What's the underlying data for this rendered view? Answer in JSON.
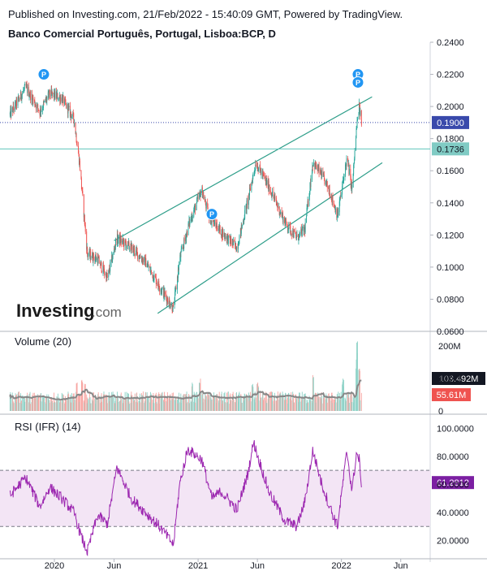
{
  "header": {
    "published": "Published on Investing.com, 21/Feb/2022 - 15:40:09 GMT, Powered by TradingView.",
    "instrument": "Banco Comercial Português, Portugal, Lisboa:BCP, D"
  },
  "logo": {
    "main": "Investing",
    "suffix": ".com"
  },
  "colors": {
    "up": "#26a69a",
    "down": "#ef5350",
    "channel": "#2e9e8a",
    "price_line": "#3949ab",
    "support_line": "#5fc4bd",
    "rsi": "#9c27b0",
    "rsi_band": "#f3e5f5",
    "volume_ma": "#888888",
    "marker": "#2196f3"
  },
  "chart_data": [
    {
      "type": "candlestick",
      "title": "Banco Comercial Português, Portugal, Lisboa:BCP, D",
      "ylim": [
        0.06,
        0.24
      ],
      "y_ticks": [
        "0.2400",
        "0.2200",
        "0.2000",
        "0.1800",
        "0.1600",
        "0.1400",
        "0.1200",
        "0.1000",
        "0.0800",
        "0.0600"
      ],
      "x_ticks": [
        "2020",
        "Jun",
        "2021",
        "Jun",
        "2022",
        "Jun"
      ],
      "price_path": [
        {
          "x": "2019-09-10",
          "y": 0.195
        },
        {
          "x": "2019-10-20",
          "y": 0.212
        },
        {
          "x": "2019-11-25",
          "y": 0.197
        },
        {
          "x": "2019-12-20",
          "y": 0.208
        },
        {
          "x": "2020-01-20",
          "y": 0.205
        },
        {
          "x": "2020-02-20",
          "y": 0.192
        },
        {
          "x": "2020-03-05",
          "y": 0.165
        },
        {
          "x": "2020-03-25",
          "y": 0.108
        },
        {
          "x": "2020-04-20",
          "y": 0.105
        },
        {
          "x": "2020-05-15",
          "y": 0.093
        },
        {
          "x": "2020-06-08",
          "y": 0.118
        },
        {
          "x": "2020-07-15",
          "y": 0.112
        },
        {
          "x": "2020-08-20",
          "y": 0.103
        },
        {
          "x": "2020-09-25",
          "y": 0.088
        },
        {
          "x": "2020-10-30",
          "y": 0.074
        },
        {
          "x": "2020-11-15",
          "y": 0.105
        },
        {
          "x": "2020-12-10",
          "y": 0.128
        },
        {
          "x": "2021-01-10",
          "y": 0.148
        },
        {
          "x": "2021-01-28",
          "y": 0.132
        },
        {
          "x": "2021-03-01",
          "y": 0.122
        },
        {
          "x": "2021-04-10",
          "y": 0.112
        },
        {
          "x": "2021-05-08",
          "y": 0.142
        },
        {
          "x": "2021-05-28",
          "y": 0.165
        },
        {
          "x": "2021-06-30",
          "y": 0.15
        },
        {
          "x": "2021-08-10",
          "y": 0.128
        },
        {
          "x": "2021-09-10",
          "y": 0.118
        },
        {
          "x": "2021-09-30",
          "y": 0.124
        },
        {
          "x": "2021-10-20",
          "y": 0.165
        },
        {
          "x": "2021-11-10",
          "y": 0.158
        },
        {
          "x": "2021-12-01",
          "y": 0.148
        },
        {
          "x": "2021-12-22",
          "y": 0.132
        },
        {
          "x": "2022-01-15",
          "y": 0.168
        },
        {
          "x": "2022-01-28",
          "y": 0.148
        },
        {
          "x": "2022-02-08",
          "y": 0.185
        },
        {
          "x": "2022-02-15",
          "y": 0.2
        },
        {
          "x": "2022-02-21",
          "y": 0.19
        }
      ],
      "horizontal_lines": [
        {
          "value": 0.19,
          "label": "0.1900",
          "style": "dotted"
        },
        {
          "value": 0.1736,
          "label": "0.1736",
          "style": "solid"
        }
      ],
      "trend_lines": [
        {
          "from": {
            "x": "2020-06-01",
            "y": 0.1165
          },
          "to": {
            "x": "2022-03-20",
            "y": 0.206
          }
        },
        {
          "from": {
            "x": "2020-09-20",
            "y": 0.0712
          },
          "to": {
            "x": "2022-04-15",
            "y": 0.165
          }
        }
      ],
      "markers": [
        {
          "x": "2019-12-05",
          "y": 0.22,
          "label": "P"
        },
        {
          "x": "2021-02-05",
          "y": 0.133,
          "label": "P"
        },
        {
          "x": "2022-02-12",
          "y": 0.22,
          "label": "P"
        },
        {
          "x": "2022-02-12",
          "y": 0.215,
          "label": "P"
        }
      ]
    },
    {
      "type": "bar",
      "title": "Volume (20)",
      "ylim": [
        0,
        240
      ],
      "unit": "M",
      "y_ticks": [
        "200M",
        "100M",
        "0"
      ],
      "last_value_label": "103.492M",
      "ma_value_label": "55.61M",
      "spikes": [
        {
          "x": "2019-10-01",
          "value": 60
        },
        {
          "x": "2020-02-28",
          "value": 88
        },
        {
          "x": "2020-03-12",
          "value": 105
        },
        {
          "x": "2020-03-20",
          "value": 98
        },
        {
          "x": "2020-12-18",
          "value": 92
        },
        {
          "x": "2021-01-05",
          "value": 110
        },
        {
          "x": "2021-05-20",
          "value": 95
        },
        {
          "x": "2021-06-02",
          "value": 90
        },
        {
          "x": "2021-10-22",
          "value": 112
        },
        {
          "x": "2022-01-05",
          "value": 100
        },
        {
          "x": "2022-02-08",
          "value": 160
        },
        {
          "x": "2022-02-11",
          "value": 232
        },
        {
          "x": "2022-02-15",
          "value": 150
        }
      ]
    },
    {
      "type": "line",
      "title": "RSI (IFR) (14)",
      "ylim": [
        7,
        110
      ],
      "y_ticks": [
        "100.0000",
        "80.0000",
        "60.0000",
        "40.0000",
        "20.0000"
      ],
      "band": [
        30,
        70
      ],
      "last_value_label": "61.2812",
      "rsi_path": [
        {
          "x": "2019-09-10",
          "y": 52
        },
        {
          "x": "2019-10-20",
          "y": 65
        },
        {
          "x": "2019-11-25",
          "y": 44
        },
        {
          "x": "2019-12-20",
          "y": 58
        },
        {
          "x": "2020-01-20",
          "y": 50
        },
        {
          "x": "2020-02-20",
          "y": 40
        },
        {
          "x": "2020-03-10",
          "y": 22
        },
        {
          "x": "2020-03-25",
          "y": 12
        },
        {
          "x": "2020-04-20",
          "y": 38
        },
        {
          "x": "2020-05-15",
          "y": 32
        },
        {
          "x": "2020-06-08",
          "y": 72
        },
        {
          "x": "2020-07-15",
          "y": 50
        },
        {
          "x": "2020-08-20",
          "y": 40
        },
        {
          "x": "2020-09-25",
          "y": 30
        },
        {
          "x": "2020-10-30",
          "y": 17
        },
        {
          "x": "2020-11-15",
          "y": 60
        },
        {
          "x": "2020-12-05",
          "y": 85
        },
        {
          "x": "2021-01-10",
          "y": 78
        },
        {
          "x": "2021-02-05",
          "y": 50
        },
        {
          "x": "2021-03-01",
          "y": 55
        },
        {
          "x": "2021-04-10",
          "y": 42
        },
        {
          "x": "2021-05-08",
          "y": 68
        },
        {
          "x": "2021-05-22",
          "y": 90
        },
        {
          "x": "2021-06-30",
          "y": 55
        },
        {
          "x": "2021-08-10",
          "y": 34
        },
        {
          "x": "2021-09-10",
          "y": 30
        },
        {
          "x": "2021-09-30",
          "y": 48
        },
        {
          "x": "2021-10-20",
          "y": 84
        },
        {
          "x": "2021-11-10",
          "y": 62
        },
        {
          "x": "2021-12-01",
          "y": 45
        },
        {
          "x": "2021-12-22",
          "y": 30
        },
        {
          "x": "2022-01-15",
          "y": 84
        },
        {
          "x": "2022-01-28",
          "y": 55
        },
        {
          "x": "2022-02-08",
          "y": 82
        },
        {
          "x": "2022-02-15",
          "y": 78
        },
        {
          "x": "2022-02-21",
          "y": 61.28
        }
      ]
    }
  ]
}
